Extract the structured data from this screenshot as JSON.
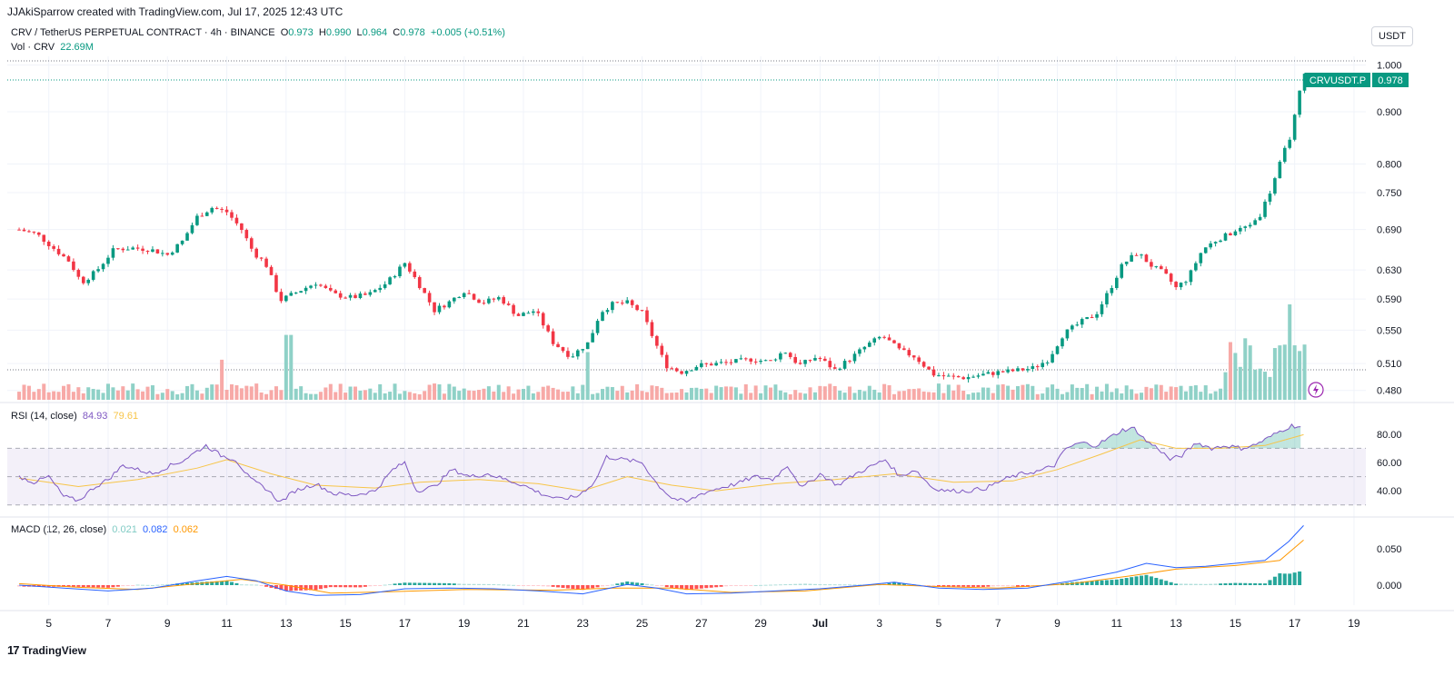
{
  "header": {
    "credit": "JJAkiSparrow created with TradingView.com, Jul 17, 2025 12:43 UTC"
  },
  "legend": {
    "symbol": "CRV / TetherUS PERPETUAL CONTRACT · 4h · BINANCE",
    "open_label": "O",
    "open": "0.973",
    "high_label": "H",
    "high": "0.990",
    "low_label": "L",
    "low": "0.964",
    "close_label": "C",
    "close": "0.978",
    "change": "+0.005 (+0.51%)",
    "vol_label": "Vol · CRV",
    "vol_value": "22.69M"
  },
  "unit": "USDT",
  "price_tag": {
    "symbol": "CRVUSDT.P",
    "value": "0.978"
  },
  "rsi_legend": {
    "label": "RSI (14, close)",
    "value": "84.93",
    "ma": "79.61"
  },
  "macd_legend": {
    "label": "MACD (12, 26, close)",
    "hist": "0.021",
    "macd": "0.082",
    "signal": "0.062"
  },
  "footer": {
    "brand": "TradingView",
    "logo": "17"
  },
  "colors": {
    "up": "#089981",
    "down": "#f23645",
    "up_vol": "#8fd1c7",
    "down_vol": "#f7a9a7",
    "rsi": "#7e57c2",
    "rsi_ma": "#f7c548",
    "macd": "#2962ff",
    "signal": "#ff9800"
  },
  "chart_data": {
    "type": "candlestick",
    "price_axis_ticks": [
      "1.000",
      "0.900",
      "0.800",
      "0.750",
      "0.690",
      "0.630",
      "0.590",
      "0.550",
      "0.510",
      "0.480"
    ],
    "rsi_axis_ticks": [
      "80.00",
      "60.00",
      "40.00"
    ],
    "macd_axis_ticks": [
      "0.050",
      "0.000"
    ],
    "x_ticks": [
      {
        "label": "5",
        "day": 5
      },
      {
        "label": "7",
        "day": 7
      },
      {
        "label": "9",
        "day": 9
      },
      {
        "label": "11",
        "day": 11
      },
      {
        "label": "13",
        "day": 13
      },
      {
        "label": "15",
        "day": 15
      },
      {
        "label": "17",
        "day": 17
      },
      {
        "label": "19",
        "day": 19
      },
      {
        "label": "21",
        "day": 21
      },
      {
        "label": "23",
        "day": 23
      },
      {
        "label": "25",
        "day": 25
      },
      {
        "label": "27",
        "day": 27
      },
      {
        "label": "29",
        "day": 29
      },
      {
        "label": "Jul",
        "day": 31
      },
      {
        "label": "3",
        "day": 33
      },
      {
        "label": "5",
        "day": 35
      },
      {
        "label": "7",
        "day": 37
      },
      {
        "label": "9",
        "day": 39
      },
      {
        "label": "11",
        "day": 41
      },
      {
        "label": "13",
        "day": 43
      },
      {
        "label": "15",
        "day": 45
      },
      {
        "label": "17",
        "day": 47
      },
      {
        "label": "19",
        "day": 49
      }
    ],
    "close_path": [
      [
        4.0,
        0.69
      ],
      [
        4.6,
        0.683
      ],
      [
        5.2,
        0.66
      ],
      [
        5.7,
        0.642
      ],
      [
        6.1,
        0.612
      ],
      [
        6.6,
        0.628
      ],
      [
        7.2,
        0.66
      ],
      [
        7.8,
        0.662
      ],
      [
        8.4,
        0.66
      ],
      [
        9.0,
        0.652
      ],
      [
        9.5,
        0.672
      ],
      [
        10.0,
        0.71
      ],
      [
        10.5,
        0.725
      ],
      [
        11.0,
        0.718
      ],
      [
        11.5,
        0.69
      ],
      [
        11.9,
        0.655
      ],
      [
        12.3,
        0.64
      ],
      [
        12.8,
        0.588
      ],
      [
        13.4,
        0.6
      ],
      [
        14.0,
        0.612
      ],
      [
        14.6,
        0.596
      ],
      [
        15.2,
        0.592
      ],
      [
        15.8,
        0.596
      ],
      [
        16.4,
        0.612
      ],
      [
        17.0,
        0.64
      ],
      [
        17.4,
        0.615
      ],
      [
        18.0,
        0.575
      ],
      [
        18.5,
        0.586
      ],
      [
        19.0,
        0.601
      ],
      [
        19.6,
        0.585
      ],
      [
        20.2,
        0.592
      ],
      [
        20.8,
        0.568
      ],
      [
        21.4,
        0.575
      ],
      [
        22.0,
        0.535
      ],
      [
        22.6,
        0.518
      ],
      [
        23.2,
        0.535
      ],
      [
        23.6,
        0.573
      ],
      [
        24.0,
        0.583
      ],
      [
        24.5,
        0.585
      ],
      [
        25.0,
        0.572
      ],
      [
        25.4,
        0.538
      ],
      [
        25.8,
        0.508
      ],
      [
        26.3,
        0.5
      ],
      [
        26.9,
        0.508
      ],
      [
        27.5,
        0.51
      ],
      [
        28.1,
        0.512
      ],
      [
        28.7,
        0.515
      ],
      [
        29.3,
        0.512
      ],
      [
        29.8,
        0.525
      ],
      [
        30.3,
        0.508
      ],
      [
        30.9,
        0.518
      ],
      [
        31.5,
        0.503
      ],
      [
        32.0,
        0.515
      ],
      [
        32.6,
        0.532
      ],
      [
        33.1,
        0.543
      ],
      [
        33.7,
        0.525
      ],
      [
        34.2,
        0.518
      ],
      [
        34.8,
        0.498
      ],
      [
        35.3,
        0.495
      ],
      [
        35.9,
        0.494
      ],
      [
        36.4,
        0.497
      ],
      [
        37.0,
        0.5
      ],
      [
        37.6,
        0.502
      ],
      [
        38.2,
        0.505
      ],
      [
        38.7,
        0.515
      ],
      [
        39.2,
        0.545
      ],
      [
        39.8,
        0.56
      ],
      [
        40.3,
        0.57
      ],
      [
        40.8,
        0.605
      ],
      [
        41.2,
        0.638
      ],
      [
        41.7,
        0.655
      ],
      [
        42.2,
        0.635
      ],
      [
        42.6,
        0.625
      ],
      [
        43.0,
        0.605
      ],
      [
        43.4,
        0.618
      ],
      [
        43.9,
        0.66
      ],
      [
        44.4,
        0.675
      ],
      [
        44.9,
        0.685
      ],
      [
        45.4,
        0.695
      ],
      [
        45.8,
        0.71
      ],
      [
        46.2,
        0.755
      ],
      [
        46.6,
        0.815
      ],
      [
        46.9,
        0.86
      ],
      [
        47.1,
        0.92
      ],
      [
        47.3,
        0.978
      ]
    ],
    "volume_peaks": [
      {
        "x_day": 13.1,
        "relative": 0.68
      },
      {
        "x_day": 10.8,
        "relative": 0.42
      },
      {
        "x_day": 23.2,
        "relative": 0.5
      },
      {
        "x_day": 46.8,
        "relative": 1.0
      },
      {
        "x_day": 45.4,
        "relative": 0.57
      }
    ],
    "rsi_path": [
      [
        4.0,
        50
      ],
      [
        4.5,
        46
      ],
      [
        5.0,
        50
      ],
      [
        5.5,
        36
      ],
      [
        6.0,
        33
      ],
      [
        6.5,
        42
      ],
      [
        7.0,
        48
      ],
      [
        7.5,
        58
      ],
      [
        8.0,
        55
      ],
      [
        8.5,
        52
      ],
      [
        9.0,
        57
      ],
      [
        9.5,
        61
      ],
      [
        10.0,
        68
      ],
      [
        10.3,
        72
      ],
      [
        10.8,
        65
      ],
      [
        11.3,
        62
      ],
      [
        11.8,
        48
      ],
      [
        12.3,
        42
      ],
      [
        12.8,
        32
      ],
      [
        13.3,
        40
      ],
      [
        14.0,
        45
      ],
      [
        14.6,
        38
      ],
      [
        15.3,
        37
      ],
      [
        16.0,
        40
      ],
      [
        16.6,
        55
      ],
      [
        17.0,
        60
      ],
      [
        17.4,
        40
      ],
      [
        18.0,
        43
      ],
      [
        18.6,
        55
      ],
      [
        19.2,
        50
      ],
      [
        19.8,
        52
      ],
      [
        20.4,
        48
      ],
      [
        21.0,
        44
      ],
      [
        21.6,
        38
      ],
      [
        22.2,
        34
      ],
      [
        22.8,
        36
      ],
      [
        23.4,
        46
      ],
      [
        23.8,
        64
      ],
      [
        24.4,
        62
      ],
      [
        25.0,
        60
      ],
      [
        25.5,
        45
      ],
      [
        26.0,
        35
      ],
      [
        26.5,
        32
      ],
      [
        27.0,
        38
      ],
      [
        27.6,
        42
      ],
      [
        28.2,
        45
      ],
      [
        28.8,
        50
      ],
      [
        29.4,
        48
      ],
      [
        29.9,
        58
      ],
      [
        30.4,
        42
      ],
      [
        31.0,
        52
      ],
      [
        31.6,
        44
      ],
      [
        32.2,
        52
      ],
      [
        32.8,
        58
      ],
      [
        33.2,
        62
      ],
      [
        33.7,
        50
      ],
      [
        34.2,
        55
      ],
      [
        34.8,
        42
      ],
      [
        35.3,
        40
      ],
      [
        36.0,
        40
      ],
      [
        36.6,
        42
      ],
      [
        37.2,
        48
      ],
      [
        37.8,
        52
      ],
      [
        38.4,
        54
      ],
      [
        38.9,
        58
      ],
      [
        39.3,
        70
      ],
      [
        39.8,
        74
      ],
      [
        40.3,
        72
      ],
      [
        40.8,
        78
      ],
      [
        41.2,
        83
      ],
      [
        41.6,
        84
      ],
      [
        42.0,
        75
      ],
      [
        42.4,
        70
      ],
      [
        42.8,
        62
      ],
      [
        43.2,
        65
      ],
      [
        43.7,
        74
      ],
      [
        44.2,
        70
      ],
      [
        44.7,
        72
      ],
      [
        45.2,
        70
      ],
      [
        45.6,
        72
      ],
      [
        46.0,
        76
      ],
      [
        46.5,
        82
      ],
      [
        46.9,
        86
      ],
      [
        47.3,
        84.93
      ]
    ],
    "rsi_ma_path": [
      [
        4.0,
        49
      ],
      [
        6.0,
        43
      ],
      [
        8.0,
        48
      ],
      [
        10.0,
        56
      ],
      [
        11.0,
        62
      ],
      [
        12.5,
        52
      ],
      [
        14.0,
        44
      ],
      [
        16.0,
        42
      ],
      [
        17.5,
        46
      ],
      [
        19.5,
        48
      ],
      [
        21.5,
        45
      ],
      [
        23.0,
        40
      ],
      [
        24.5,
        50
      ],
      [
        26.0,
        44
      ],
      [
        27.5,
        40
      ],
      [
        29.5,
        45
      ],
      [
        31.5,
        48
      ],
      [
        33.5,
        52
      ],
      [
        35.5,
        46
      ],
      [
        37.5,
        47
      ],
      [
        39.0,
        55
      ],
      [
        40.5,
        66
      ],
      [
        41.8,
        76
      ],
      [
        43.0,
        70
      ],
      [
        44.5,
        70
      ],
      [
        46.0,
        72
      ],
      [
        47.3,
        79.61
      ]
    ],
    "macd_path": [
      [
        4.0,
        0.0
      ],
      [
        5.5,
        -0.004
      ],
      [
        7.0,
        -0.008
      ],
      [
        8.5,
        -0.004
      ],
      [
        10.0,
        0.006
      ],
      [
        11.0,
        0.012
      ],
      [
        12.0,
        0.006
      ],
      [
        13.0,
        -0.008
      ],
      [
        14.0,
        -0.014
      ],
      [
        15.5,
        -0.013
      ],
      [
        17.0,
        -0.005
      ],
      [
        18.5,
        -0.004
      ],
      [
        20.0,
        -0.005
      ],
      [
        21.5,
        -0.008
      ],
      [
        23.0,
        -0.012
      ],
      [
        24.5,
        0.001
      ],
      [
        25.5,
        -0.004
      ],
      [
        26.5,
        -0.012
      ],
      [
        28.0,
        -0.011
      ],
      [
        29.5,
        -0.008
      ],
      [
        31.0,
        -0.005
      ],
      [
        32.5,
        0.0
      ],
      [
        33.5,
        0.004
      ],
      [
        35.0,
        -0.004
      ],
      [
        36.5,
        -0.006
      ],
      [
        38.0,
        -0.004
      ],
      [
        39.5,
        0.006
      ],
      [
        41.0,
        0.018
      ],
      [
        42.0,
        0.03
      ],
      [
        43.0,
        0.024
      ],
      [
        44.0,
        0.026
      ],
      [
        45.0,
        0.03
      ],
      [
        46.0,
        0.034
      ],
      [
        46.8,
        0.06
      ],
      [
        47.3,
        0.082
      ]
    ],
    "signal_path": [
      [
        4.0,
        0.002
      ],
      [
        6.0,
        -0.003
      ],
      [
        8.0,
        -0.006
      ],
      [
        10.0,
        0.002
      ],
      [
        11.5,
        0.008
      ],
      [
        13.0,
        0.0
      ],
      [
        14.5,
        -0.011
      ],
      [
        16.5,
        -0.009
      ],
      [
        19.0,
        -0.006
      ],
      [
        22.0,
        -0.007
      ],
      [
        24.0,
        -0.004
      ],
      [
        26.0,
        -0.004
      ],
      [
        28.0,
        -0.01
      ],
      [
        30.5,
        -0.008
      ],
      [
        33.0,
        0.001
      ],
      [
        35.0,
        -0.002
      ],
      [
        37.0,
        -0.004
      ],
      [
        39.5,
        0.002
      ],
      [
        41.5,
        0.013
      ],
      [
        43.0,
        0.022
      ],
      [
        45.0,
        0.027
      ],
      [
        46.5,
        0.034
      ],
      [
        47.3,
        0.062
      ]
    ]
  }
}
